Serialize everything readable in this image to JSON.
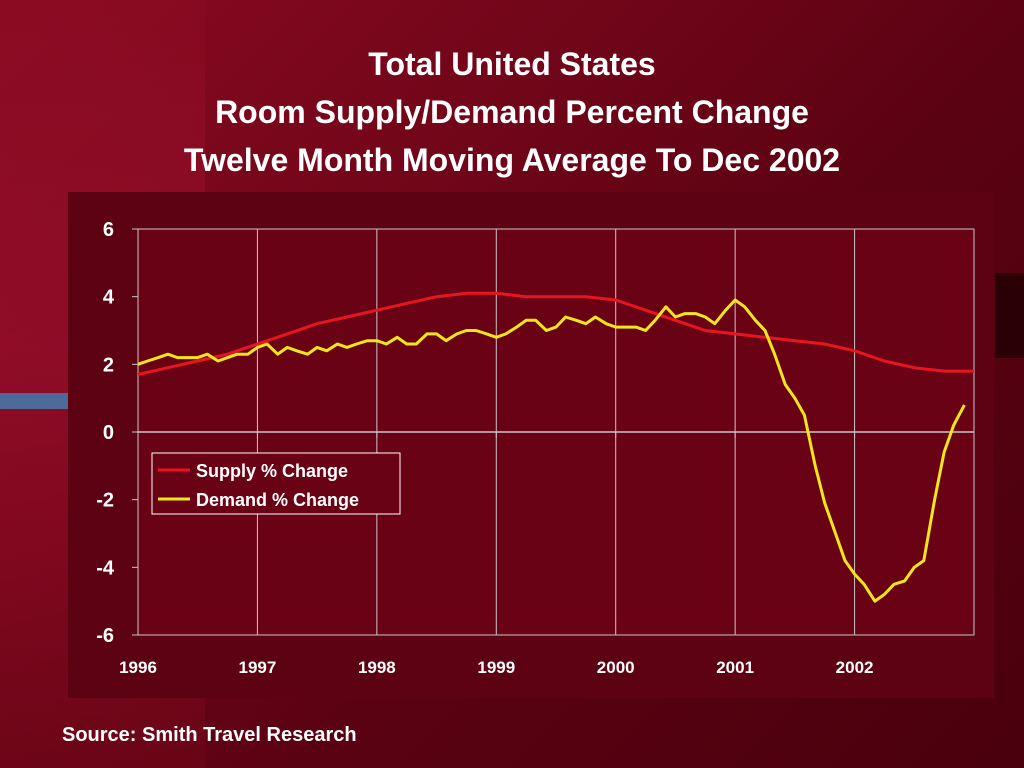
{
  "title": {
    "line1": "Total United States",
    "line2": "Room Supply/Demand Percent Change",
    "line3": "Twelve Month Moving Average To Dec 2002"
  },
  "source": "Source: Smith Travel Research",
  "colors": {
    "supply": "#e8141e",
    "demand": "#f2e61a",
    "grid": "#c8c8c8",
    "plot_bg": "#6a0216",
    "panel_bg": "#5c0213",
    "legend_bg": "#6a0216"
  },
  "chart_data": {
    "type": "line",
    "title": "Total United States / Room Supply/Demand Percent Change / Twelve Month Moving Average To Dec 2002",
    "xlabel": "",
    "ylabel": "",
    "x_ticks": [
      "1996",
      "1997",
      "1998",
      "1999",
      "2000",
      "2001",
      "2002"
    ],
    "y_ticks": [
      6,
      4,
      2,
      0,
      -2,
      -4,
      -6
    ],
    "ylim": [
      -6,
      6
    ],
    "xlim": [
      1996.0,
      2003.0
    ],
    "grid": true,
    "legend_position": "middle-left",
    "series": [
      {
        "name": "Supply % Change",
        "color_key": "supply",
        "points": [
          [
            1996.0,
            1.7
          ],
          [
            1996.25,
            1.9
          ],
          [
            1996.5,
            2.1
          ],
          [
            1996.75,
            2.3
          ],
          [
            1997.0,
            2.6
          ],
          [
            1997.25,
            2.9
          ],
          [
            1997.5,
            3.2
          ],
          [
            1997.75,
            3.4
          ],
          [
            1998.0,
            3.6
          ],
          [
            1998.25,
            3.8
          ],
          [
            1998.5,
            4.0
          ],
          [
            1998.75,
            4.1
          ],
          [
            1999.0,
            4.1
          ],
          [
            1999.25,
            4.0
          ],
          [
            1999.5,
            4.0
          ],
          [
            1999.75,
            4.0
          ],
          [
            2000.0,
            3.9
          ],
          [
            2000.25,
            3.6
          ],
          [
            2000.5,
            3.3
          ],
          [
            2000.75,
            3.0
          ],
          [
            2001.0,
            2.9
          ],
          [
            2001.25,
            2.8
          ],
          [
            2001.5,
            2.7
          ],
          [
            2001.75,
            2.6
          ],
          [
            2002.0,
            2.4
          ],
          [
            2002.25,
            2.1
          ],
          [
            2002.5,
            1.9
          ],
          [
            2002.75,
            1.8
          ],
          [
            2003.0,
            1.8
          ]
        ]
      },
      {
        "name": "Demand % Change",
        "color_key": "demand",
        "points": [
          [
            1996.0,
            2.0
          ],
          [
            1996.08,
            2.1
          ],
          [
            1996.17,
            2.2
          ],
          [
            1996.25,
            2.3
          ],
          [
            1996.33,
            2.2
          ],
          [
            1996.42,
            2.2
          ],
          [
            1996.5,
            2.2
          ],
          [
            1996.58,
            2.3
          ],
          [
            1996.67,
            2.1
          ],
          [
            1996.75,
            2.2
          ],
          [
            1996.83,
            2.3
          ],
          [
            1996.92,
            2.3
          ],
          [
            1997.0,
            2.5
          ],
          [
            1997.08,
            2.6
          ],
          [
            1997.17,
            2.3
          ],
          [
            1997.25,
            2.5
          ],
          [
            1997.33,
            2.4
          ],
          [
            1997.42,
            2.3
          ],
          [
            1997.5,
            2.5
          ],
          [
            1997.58,
            2.4
          ],
          [
            1997.67,
            2.6
          ],
          [
            1997.75,
            2.5
          ],
          [
            1997.83,
            2.6
          ],
          [
            1997.92,
            2.7
          ],
          [
            1998.0,
            2.7
          ],
          [
            1998.08,
            2.6
          ],
          [
            1998.17,
            2.8
          ],
          [
            1998.25,
            2.6
          ],
          [
            1998.33,
            2.6
          ],
          [
            1998.42,
            2.9
          ],
          [
            1998.5,
            2.9
          ],
          [
            1998.58,
            2.7
          ],
          [
            1998.67,
            2.9
          ],
          [
            1998.75,
            3.0
          ],
          [
            1998.83,
            3.0
          ],
          [
            1998.92,
            2.9
          ],
          [
            1999.0,
            2.8
          ],
          [
            1999.08,
            2.9
          ],
          [
            1999.17,
            3.1
          ],
          [
            1999.25,
            3.3
          ],
          [
            1999.33,
            3.3
          ],
          [
            1999.42,
            3.0
          ],
          [
            1999.5,
            3.1
          ],
          [
            1999.58,
            3.4
          ],
          [
            1999.67,
            3.3
          ],
          [
            1999.75,
            3.2
          ],
          [
            1999.83,
            3.4
          ],
          [
            1999.92,
            3.2
          ],
          [
            2000.0,
            3.1
          ],
          [
            2000.08,
            3.1
          ],
          [
            2000.17,
            3.1
          ],
          [
            2000.25,
            3.0
          ],
          [
            2000.33,
            3.3
          ],
          [
            2000.42,
            3.7
          ],
          [
            2000.5,
            3.4
          ],
          [
            2000.58,
            3.5
          ],
          [
            2000.67,
            3.5
          ],
          [
            2000.75,
            3.4
          ],
          [
            2000.83,
            3.2
          ],
          [
            2000.92,
            3.6
          ],
          [
            2001.0,
            3.9
          ],
          [
            2001.08,
            3.7
          ],
          [
            2001.17,
            3.3
          ],
          [
            2001.25,
            3.0
          ],
          [
            2001.33,
            2.3
          ],
          [
            2001.42,
            1.4
          ],
          [
            2001.5,
            1.0
          ],
          [
            2001.58,
            0.5
          ],
          [
            2001.67,
            -1.0
          ],
          [
            2001.75,
            -2.1
          ],
          [
            2001.83,
            -2.9
          ],
          [
            2001.92,
            -3.8
          ],
          [
            2002.0,
            -4.2
          ],
          [
            2002.08,
            -4.5
          ],
          [
            2002.17,
            -5.0
          ],
          [
            2002.25,
            -4.8
          ],
          [
            2002.33,
            -4.5
          ],
          [
            2002.42,
            -4.4
          ],
          [
            2002.5,
            -4.0
          ],
          [
            2002.58,
            -3.8
          ],
          [
            2002.67,
            -2.0
          ],
          [
            2002.75,
            -0.6
          ],
          [
            2002.83,
            0.2
          ],
          [
            2002.92,
            0.8
          ]
        ]
      }
    ]
  }
}
